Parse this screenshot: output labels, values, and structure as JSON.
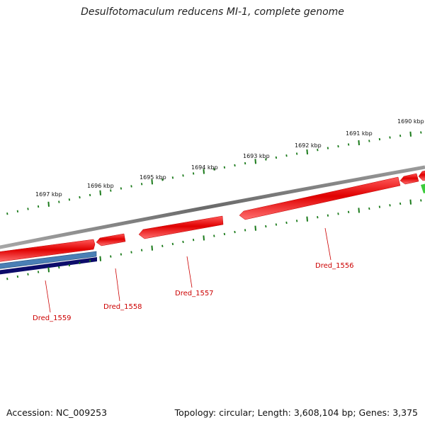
{
  "title": "Desulfotomaculum reducens MI-1, complete genome",
  "kbp_labels": [
    "1697 kbp",
    "1696 kbp",
    "1695 kbp",
    "1694 kbp",
    "1693 kbp",
    "1692 kbp",
    "1691 kbp",
    "1690 kbp"
  ],
  "gene_labels": [
    "Dred_1559",
    "Dred_1558",
    "Dred_1557",
    "Dred_1556"
  ],
  "footer": {
    "accession": "Accession: NC_009253",
    "summary": "Topology: circular; Length: 3,608,104 bp; Genes: 3,375"
  },
  "colors": {
    "backbone": "#7a7a7a",
    "gene_forward": "#e01010",
    "gene_forward_light": "#ff6060",
    "tick": "#1a7a1a",
    "label_line": "#cc0000",
    "label_text": "#cc0000",
    "blue_light": "#4a7fb5",
    "blue_dark": "#0c0c6a",
    "green_feature": "#3ccc3c"
  }
}
